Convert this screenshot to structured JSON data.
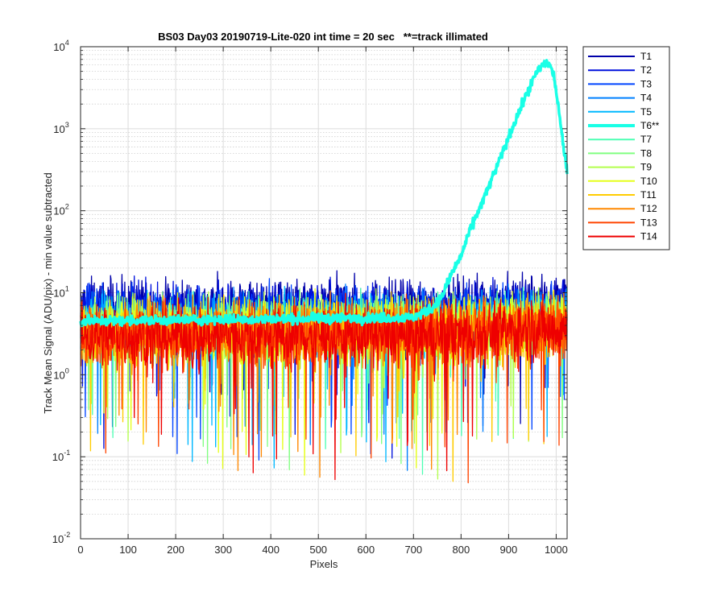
{
  "chart_data": {
    "type": "line",
    "title": "BS03 Day03 20190719-Lite-020 int time = 20 sec   **=track illimated",
    "xlabel": "Pixels",
    "ylabel": "Track Mean Signal (ADU/pix) - min value subtracted",
    "xlim": [
      0,
      1023
    ],
    "ylim": [
      0.01,
      10000
    ],
    "y_scale": "log",
    "grid": true,
    "minor_grid": true,
    "legend_position": "outside-right-top",
    "x_ticks": [
      {
        "v": 0,
        "label": "0"
      },
      {
        "v": 100,
        "label": "100"
      },
      {
        "v": 200,
        "label": "200"
      },
      {
        "v": 300,
        "label": "300"
      },
      {
        "v": 400,
        "label": "400"
      },
      {
        "v": 500,
        "label": "500"
      },
      {
        "v": 600,
        "label": "600"
      },
      {
        "v": 700,
        "label": "700"
      },
      {
        "v": 800,
        "label": "800"
      },
      {
        "v": 900,
        "label": "900"
      },
      {
        "v": 1000,
        "label": "1000"
      }
    ],
    "y_ticks": [
      {
        "v": 0.01,
        "base": "10",
        "exp": "-2"
      },
      {
        "v": 0.1,
        "base": "10",
        "exp": "-1"
      },
      {
        "v": 1,
        "base": "10",
        "exp": "0"
      },
      {
        "v": 10,
        "base": "10",
        "exp": "1"
      },
      {
        "v": 100,
        "base": "10",
        "exp": "2"
      },
      {
        "v": 1000,
        "base": "10",
        "exp": "3"
      },
      {
        "v": 10000,
        "base": "10",
        "exp": "4"
      }
    ],
    "series": [
      {
        "name": "T1",
        "color": "#0000aa",
        "level": 7.0,
        "variability": 0.5
      },
      {
        "name": "T2",
        "color": "#0011dd",
        "level": 6.0,
        "variability": 0.5
      },
      {
        "name": "T3",
        "color": "#0044ff",
        "level": 5.0,
        "variability": 0.55
      },
      {
        "name": "T4",
        "color": "#0080ff",
        "level": 4.5,
        "variability": 0.55
      },
      {
        "name": "T5",
        "color": "#00b8ff",
        "level": 4.0,
        "variability": 0.55
      },
      {
        "name": "T6**",
        "color": "#19ffe6",
        "level": 4.5,
        "variability": 0.25,
        "highlighted": true,
        "curve": [
          [
            0,
            4.5
          ],
          [
            700,
            5.0
          ],
          [
            740,
            6.5
          ],
          [
            760,
            9.0
          ],
          [
            780,
            17.0
          ],
          [
            800,
            28.0
          ],
          [
            820,
            60.0
          ],
          [
            850,
            150.0
          ],
          [
            880,
            400.0
          ],
          [
            910,
            1100.0
          ],
          [
            940,
            2800.0
          ],
          [
            960,
            5000.0
          ],
          [
            975,
            6300.0
          ],
          [
            985,
            6200.0
          ],
          [
            995,
            4500.0
          ],
          [
            1005,
            1800.0
          ],
          [
            1015,
            600.0
          ],
          [
            1023,
            300.0
          ]
        ]
      },
      {
        "name": "T7",
        "color": "#4dffb3",
        "level": 4.0,
        "variability": 0.55
      },
      {
        "name": "T8",
        "color": "#80ff80",
        "level": 3.8,
        "variability": 0.55
      },
      {
        "name": "T9",
        "color": "#b3ff4d",
        "level": 3.6,
        "variability": 0.6
      },
      {
        "name": "T10",
        "color": "#e6ff19",
        "level": 3.4,
        "variability": 0.6
      },
      {
        "name": "T11",
        "color": "#ffcc00",
        "level": 3.3,
        "variability": 0.6
      },
      {
        "name": "T12",
        "color": "#ff8800",
        "level": 3.2,
        "variability": 0.6
      },
      {
        "name": "T13",
        "color": "#ff4400",
        "level": 3.1,
        "variability": 0.6
      },
      {
        "name": "T14",
        "color": "#ee0000",
        "level": 3.0,
        "variability": 0.6
      }
    ]
  }
}
